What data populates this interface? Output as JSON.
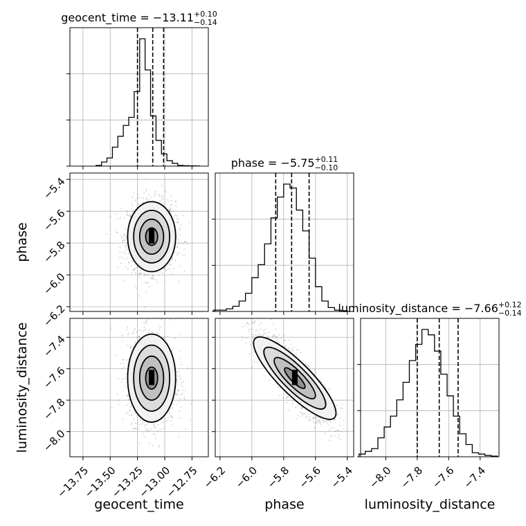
{
  "chart_data": {
    "type": "corner",
    "parameters": [
      "geocent_time",
      "phase",
      "luminosity_distance"
    ],
    "axis_labels": {
      "x": [
        "geocent_time",
        "phase",
        "luminosity_distance"
      ],
      "y": [
        "phase",
        "luminosity_distance"
      ]
    },
    "ranges": {
      "geocent_time": [
        -13.87,
        -12.6
      ],
      "phase": [
        -6.23,
        -5.36
      ],
      "luminosity_distance": [
        -8.16,
        -7.28
      ]
    },
    "ticks": {
      "geocent_time": {
        "values": [
          -13.75,
          -13.5,
          -13.25,
          -13.0,
          -12.75
        ],
        "labels": [
          "−13.75",
          "−13.50",
          "−13.25",
          "−13.00",
          "−12.75"
        ]
      },
      "phase_x": {
        "values": [
          -6.2,
          -6.0,
          -5.8,
          -5.6,
          -5.4
        ],
        "labels": [
          "−6.2",
          "−6.0",
          "−5.8",
          "−5.6",
          "−5.4"
        ]
      },
      "phase_y": {
        "values": [
          -6.2,
          -6.0,
          -5.8,
          -5.6,
          -5.4
        ],
        "labels": [
          "−6.2",
          "−6.0",
          "−5.8",
          "−5.6",
          "−5.4"
        ]
      },
      "luminosity_distance_x": {
        "values": [
          -8.0,
          -7.8,
          -7.6,
          -7.4
        ],
        "labels": [
          "−8.0",
          "−7.8",
          "−7.6",
          "−7.4"
        ]
      },
      "luminosity_distance_y": {
        "values": [
          -8.0,
          -7.8,
          -7.6,
          -7.4
        ],
        "labels": [
          "−8.0",
          "−7.8",
          "−7.6",
          "−7.4"
        ]
      }
    },
    "titles": [
      {
        "param": "geocent_time",
        "main": "geocent_time = −13.11",
        "plus": "+0.10",
        "minus": "−0.14"
      },
      {
        "param": "phase",
        "main": "phase = −5.75",
        "plus": "+0.11",
        "minus": "−0.10"
      },
      {
        "param": "luminosity_distance",
        "main": "luminosity_distance = −7.66",
        "plus": "+0.12",
        "minus": "−0.14"
      }
    ],
    "quantiles": {
      "geocent_time": [
        -13.25,
        -13.11,
        -13.01
      ],
      "phase": [
        -5.85,
        -5.75,
        -5.64
      ],
      "luminosity_distance": [
        -7.8,
        -7.66,
        -7.54
      ]
    },
    "histograms": {
      "geocent_time": {
        "edges": [
          -13.63,
          -13.58,
          -13.53,
          -13.48,
          -13.43,
          -13.38,
          -13.33,
          -13.28,
          -13.23,
          -13.18,
          -13.13,
          -13.08,
          -13.03,
          -12.98,
          -12.93,
          -12.88,
          -12.83,
          -12.78,
          -12.73,
          -12.68
        ],
        "counts": [
          0.005,
          0.03,
          0.06,
          0.14,
          0.22,
          0.3,
          0.36,
          0.55,
          0.94,
          0.71,
          0.37,
          0.19,
          0.09,
          0.04,
          0.02,
          0.005,
          0.003,
          0.002,
          0.001
        ]
      },
      "phase": {
        "edges": [
          -6.24,
          -6.2,
          -6.16,
          -6.12,
          -6.08,
          -6.04,
          -6.0,
          -5.96,
          -5.92,
          -5.88,
          -5.84,
          -5.8,
          -5.76,
          -5.72,
          -5.68,
          -5.64,
          -5.6,
          -5.56,
          -5.52,
          -5.48,
          -5.44,
          -5.4
        ],
        "counts": [
          0.01,
          0.01,
          0.02,
          0.04,
          0.08,
          0.14,
          0.26,
          0.36,
          0.52,
          0.72,
          0.88,
          0.98,
          0.95,
          0.78,
          0.62,
          0.41,
          0.19,
          0.08,
          0.03,
          0.01,
          0.005
        ]
      },
      "luminosity_distance": {
        "edges": [
          -8.17,
          -8.13,
          -8.09,
          -8.05,
          -8.01,
          -7.97,
          -7.93,
          -7.89,
          -7.85,
          -7.81,
          -7.77,
          -7.73,
          -7.69,
          -7.65,
          -7.61,
          -7.57,
          -7.53,
          -7.49,
          -7.45,
          -7.41,
          -7.37,
          -7.33,
          -7.29
        ],
        "counts": [
          0.02,
          0.04,
          0.06,
          0.14,
          0.22,
          0.3,
          0.42,
          0.55,
          0.71,
          0.83,
          0.94,
          0.9,
          0.78,
          0.61,
          0.45,
          0.3,
          0.17,
          0.09,
          0.03,
          0.02,
          0.01,
          0.005
        ]
      }
    },
    "pairs": [
      {
        "x": "geocent_time",
        "y": "phase",
        "center": [
          -13.12,
          -5.76
        ],
        "spread": [
          0.11,
          0.11
        ],
        "correlation": 0.0
      },
      {
        "x": "geocent_time",
        "y": "luminosity_distance",
        "center": [
          -13.12,
          -7.66
        ],
        "spread": [
          0.11,
          0.14
        ],
        "correlation": -0.05
      },
      {
        "x": "phase",
        "y": "luminosity_distance",
        "center": [
          -5.73,
          -7.66
        ],
        "spread": [
          0.12,
          0.14
        ],
        "correlation": -0.85
      }
    ],
    "grid": true,
    "colors": {
      "line": "#000000",
      "grid": "#b0b0b0",
      "points": "#6e6e6e"
    }
  }
}
